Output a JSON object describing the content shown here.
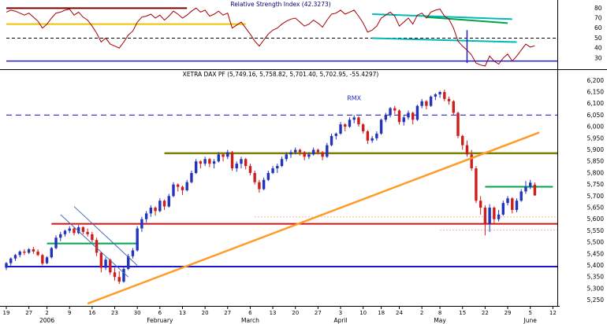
{
  "chart_data": [
    {
      "type": "line",
      "panel": "indicator",
      "title": "Relative Strength Index (42.3273)",
      "current_value": 42.3273,
      "ylim": [
        22,
        85
      ],
      "yticks": [
        80,
        70,
        60,
        50,
        40,
        30
      ],
      "series": [
        {
          "name": "RSI",
          "color": "#a40000",
          "values": [
            76,
            78,
            77,
            75,
            73,
            75,
            71,
            67,
            60,
            64,
            70,
            75,
            76,
            78,
            79,
            73,
            76,
            71,
            68,
            62,
            55,
            46,
            50,
            44,
            42,
            40,
            46,
            53,
            57,
            66,
            71,
            72,
            74,
            70,
            73,
            68,
            72,
            77,
            74,
            70,
            73,
            77,
            80,
            76,
            78,
            72,
            74,
            77,
            73,
            75,
            60,
            63,
            66,
            60,
            54,
            47,
            42,
            48,
            54,
            58,
            60,
            64,
            67,
            69,
            70,
            66,
            62,
            64,
            68,
            65,
            61,
            68,
            74,
            75,
            78,
            74,
            76,
            78,
            72,
            65,
            56,
            58,
            62,
            70,
            73,
            76,
            72,
            62,
            66,
            70,
            64,
            73,
            75,
            70,
            76,
            78,
            79,
            72,
            69,
            60,
            47,
            42,
            38,
            33,
            25,
            23,
            22,
            32,
            27,
            24,
            30,
            34,
            27,
            32,
            38,
            44,
            41,
            42.33
          ]
        }
      ],
      "overlays": [
        {
          "kind": "hline",
          "v": 80,
          "i1": 0,
          "i2": 40,
          "color": "#7d0000",
          "width": 2
        },
        {
          "kind": "hline",
          "v": 64,
          "i1": 0,
          "i2": 53,
          "color": "#edc301",
          "width": 2
        },
        {
          "kind": "hline",
          "v": 50,
          "i1": 0,
          "i2": 122,
          "color": "#000000",
          "width": 1,
          "dash": "4,3"
        },
        {
          "kind": "hline",
          "v": 27,
          "i1": 0,
          "i2": 122,
          "color": "#2121c8",
          "width": 1.5
        },
        {
          "kind": "tline",
          "i1": 81,
          "v1": 74,
          "i2": 112,
          "v2": 69,
          "color": "#00b9b9",
          "width": 2
        },
        {
          "kind": "tline",
          "i1": 93,
          "v1": 71,
          "i2": 111,
          "v2": 65,
          "color": "#00a44c",
          "width": 2
        },
        {
          "kind": "tline",
          "i1": 81,
          "v1": 50,
          "i2": 113,
          "v2": 46,
          "color": "#00b9b9",
          "width": 2
        },
        {
          "kind": "vline",
          "i": 102,
          "v1": 58,
          "v2": 25,
          "color": "#2121c8",
          "width": 1.5
        }
      ]
    },
    {
      "type": "candlestick",
      "panel": "price",
      "title": "XETRA DAX PF (5,749.16, 5,758.82, 5,701.40, 5,702.95, -55.4297)",
      "open": 5749.16,
      "high": 5758.82,
      "low": 5701.4,
      "close": 5702.95,
      "change": -55.4297,
      "up_color": "#2333bb",
      "down_color": "#cf1d1d",
      "ylim": [
        5225,
        6235
      ],
      "yticks": [
        "6,200",
        "6,150",
        "6,100",
        "6,050",
        "6,000",
        "5,950",
        "5,900",
        "5,850",
        "5,800",
        "5,750",
        "5,700",
        "5,650",
        "5,600",
        "5,550",
        "5,500",
        "5,450",
        "5,400",
        "5,350",
        "5,300",
        "5,250"
      ],
      "xticks": [
        {
          "i": 0,
          "label": "19"
        },
        {
          "i": 5,
          "label": "27"
        },
        {
          "i": 9,
          "label": "2"
        },
        {
          "i": 14,
          "label": "9"
        },
        {
          "i": 19,
          "label": "16"
        },
        {
          "i": 24,
          "label": "23"
        },
        {
          "i": 29,
          "label": "30"
        },
        {
          "i": 34,
          "label": "6"
        },
        {
          "i": 39,
          "label": "13"
        },
        {
          "i": 44,
          "label": "20"
        },
        {
          "i": 49,
          "label": "27"
        },
        {
          "i": 54,
          "label": "6"
        },
        {
          "i": 59,
          "label": "13"
        },
        {
          "i": 64,
          "label": "20"
        },
        {
          "i": 69,
          "label": "27"
        },
        {
          "i": 74,
          "label": "3"
        },
        {
          "i": 79,
          "label": "10"
        },
        {
          "i": 83,
          "label": "18"
        },
        {
          "i": 87,
          "label": "24"
        },
        {
          "i": 92,
          "label": "2"
        },
        {
          "i": 96,
          "label": "8"
        },
        {
          "i": 101,
          "label": "15"
        },
        {
          "i": 106,
          "label": "22"
        },
        {
          "i": 111,
          "label": "29"
        },
        {
          "i": 116,
          "label": "5"
        },
        {
          "i": 121,
          "label": "12"
        }
      ],
      "months": [
        {
          "i": 9,
          "label": "2006"
        },
        {
          "i": 34,
          "label": "February"
        },
        {
          "i": 54,
          "label": "March"
        },
        {
          "i": 74,
          "label": "April"
        },
        {
          "i": 96,
          "label": "May"
        },
        {
          "i": 116,
          "label": "June"
        }
      ],
      "annotations": [
        {
          "text": "RMX",
          "i": 77,
          "p": 6115,
          "color": "#2a2ad2"
        }
      ],
      "overlays": [
        {
          "kind": "hline",
          "p": 6050,
          "i1": 0,
          "i2": 122,
          "color": "#3c3cc8",
          "width": 1.3,
          "dash": "7,5"
        },
        {
          "kind": "hline",
          "p": 5885,
          "i1": 35,
          "i2": 122,
          "color": "#7e7e00",
          "width": 2.5
        },
        {
          "kind": "hline",
          "p": 5580,
          "i1": 10,
          "i2": 122,
          "color": "#d01313",
          "width": 2
        },
        {
          "kind": "hline",
          "p": 5610,
          "i1": 55,
          "i2": 122,
          "color": "#f0a0a0",
          "width": 1,
          "dash": "1.5,2.5"
        },
        {
          "kind": "hline",
          "p": 5553,
          "i1": 96,
          "i2": 122,
          "color": "#f0a0a0",
          "width": 1,
          "dash": "1.5,2.5"
        },
        {
          "kind": "hline",
          "p": 5495,
          "i1": 9,
          "i2": 29,
          "color": "#00a44c",
          "width": 2
        },
        {
          "kind": "hline",
          "p": 5740,
          "i1": 106,
          "i2": 121,
          "color": "#00a44c",
          "width": 2
        },
        {
          "kind": "hline",
          "p": 5395,
          "i1": 0,
          "i2": 122,
          "color": "#1717cf",
          "width": 2
        },
        {
          "kind": "tline",
          "i1": 18,
          "p1": 5235,
          "i2": 118,
          "p2": 5975,
          "color": "#ff9b26",
          "width": 2.5
        },
        {
          "kind": "tline",
          "i1": 12,
          "p1": 5620,
          "i2": 27,
          "p2": 5350,
          "color": "#4a6ab4",
          "width": 1
        },
        {
          "kind": "tline",
          "i1": 15,
          "p1": 5655,
          "i2": 29,
          "p2": 5400,
          "color": "#4a6ab4",
          "width": 1
        }
      ],
      "ohlc": [
        [
          5390,
          5415,
          5380,
          5410
        ],
        [
          5410,
          5435,
          5400,
          5430
        ],
        [
          5430,
          5450,
          5420,
          5445
        ],
        [
          5445,
          5465,
          5435,
          5460
        ],
        [
          5460,
          5470,
          5445,
          5455
        ],
        [
          5455,
          5475,
          5450,
          5470
        ],
        [
          5470,
          5480,
          5450,
          5460
        ],
        [
          5460,
          5470,
          5440,
          5445
        ],
        [
          5445,
          5450,
          5400,
          5408
        ],
        [
          5410,
          5440,
          5405,
          5435
        ],
        [
          5435,
          5480,
          5430,
          5475
        ],
        [
          5475,
          5530,
          5470,
          5520
        ],
        [
          5520,
          5545,
          5505,
          5535
        ],
        [
          5535,
          5555,
          5525,
          5550
        ],
        [
          5550,
          5570,
          5540,
          5560
        ],
        [
          5560,
          5565,
          5530,
          5540
        ],
        [
          5540,
          5575,
          5535,
          5565
        ],
        [
          5565,
          5570,
          5535,
          5545
        ],
        [
          5545,
          5560,
          5525,
          5535
        ],
        [
          5535,
          5545,
          5500,
          5510
        ],
        [
          5510,
          5520,
          5440,
          5455
        ],
        [
          5455,
          5460,
          5370,
          5390
        ],
        [
          5390,
          5435,
          5380,
          5425
        ],
        [
          5425,
          5430,
          5360,
          5370
        ],
        [
          5370,
          5390,
          5335,
          5350
        ],
        [
          5350,
          5375,
          5320,
          5330
        ],
        [
          5330,
          5395,
          5325,
          5385
        ],
        [
          5385,
          5450,
          5380,
          5440
        ],
        [
          5440,
          5475,
          5430,
          5465
        ],
        [
          5465,
          5570,
          5460,
          5560
        ],
        [
          5560,
          5610,
          5545,
          5600
        ],
        [
          5600,
          5635,
          5585,
          5625
        ],
        [
          5625,
          5660,
          5610,
          5650
        ],
        [
          5650,
          5655,
          5615,
          5635
        ],
        [
          5635,
          5690,
          5630,
          5680
        ],
        [
          5680,
          5685,
          5640,
          5655
        ],
        [
          5655,
          5710,
          5650,
          5700
        ],
        [
          5700,
          5760,
          5695,
          5750
        ],
        [
          5750,
          5755,
          5720,
          5740
        ],
        [
          5740,
          5745,
          5705,
          5725
        ],
        [
          5725,
          5770,
          5720,
          5760
        ],
        [
          5760,
          5810,
          5755,
          5800
        ],
        [
          5800,
          5860,
          5795,
          5850
        ],
        [
          5850,
          5855,
          5820,
          5840
        ],
        [
          5840,
          5870,
          5830,
          5860
        ],
        [
          5860,
          5865,
          5825,
          5840
        ],
        [
          5840,
          5860,
          5820,
          5850
        ],
        [
          5850,
          5890,
          5845,
          5880
        ],
        [
          5880,
          5885,
          5850,
          5870
        ],
        [
          5870,
          5900,
          5860,
          5890
        ],
        [
          5890,
          5895,
          5810,
          5820
        ],
        [
          5820,
          5850,
          5805,
          5840
        ],
        [
          5840,
          5870,
          5820,
          5860
        ],
        [
          5860,
          5865,
          5815,
          5830
        ],
        [
          5830,
          5840,
          5790,
          5800
        ],
        [
          5800,
          5810,
          5750,
          5760
        ],
        [
          5760,
          5770,
          5715,
          5730
        ],
        [
          5730,
          5780,
          5725,
          5770
        ],
        [
          5770,
          5810,
          5765,
          5800
        ],
        [
          5800,
          5830,
          5795,
          5820
        ],
        [
          5820,
          5840,
          5800,
          5830
        ],
        [
          5830,
          5870,
          5825,
          5860
        ],
        [
          5860,
          5890,
          5850,
          5880
        ],
        [
          5880,
          5900,
          5865,
          5890
        ],
        [
          5890,
          5910,
          5880,
          5900
        ],
        [
          5900,
          5905,
          5875,
          5890
        ],
        [
          5890,
          5895,
          5855,
          5870
        ],
        [
          5870,
          5890,
          5860,
          5880
        ],
        [
          5880,
          5910,
          5875,
          5900
        ],
        [
          5900,
          5905,
          5880,
          5890
        ],
        [
          5890,
          5895,
          5855,
          5870
        ],
        [
          5870,
          5930,
          5865,
          5920
        ],
        [
          5920,
          5970,
          5915,
          5960
        ],
        [
          5960,
          5975,
          5945,
          5970
        ],
        [
          5970,
          6020,
          5965,
          6010
        ],
        [
          6010,
          6015,
          5980,
          6000
        ],
        [
          6000,
          6040,
          5995,
          6030
        ],
        [
          6030,
          6050,
          6015,
          6040
        ],
        [
          6040,
          6045,
          6000,
          6010
        ],
        [
          6010,
          6015,
          5970,
          5980
        ],
        [
          5980,
          5985,
          5925,
          5940
        ],
        [
          5940,
          5960,
          5930,
          5950
        ],
        [
          5950,
          5980,
          5940,
          5970
        ],
        [
          5970,
          6035,
          5965,
          6030
        ],
        [
          6030,
          6060,
          6020,
          6050
        ],
        [
          6050,
          6085,
          6040,
          6080
        ],
        [
          6080,
          6090,
          6055,
          6070
        ],
        [
          6070,
          6075,
          6010,
          6020
        ],
        [
          6020,
          6050,
          6005,
          6040
        ],
        [
          6040,
          6070,
          6030,
          6060
        ],
        [
          6060,
          6065,
          6010,
          6030
        ],
        [
          6030,
          6095,
          6025,
          6090
        ],
        [
          6090,
          6120,
          6080,
          6110
        ],
        [
          6110,
          6115,
          6075,
          6090
        ],
        [
          6090,
          6135,
          6085,
          6130
        ],
        [
          6130,
          6145,
          6115,
          6140
        ],
        [
          6140,
          6155,
          6125,
          6150
        ],
        [
          6150,
          6160,
          6110,
          6120
        ],
        [
          6120,
          6130,
          6095,
          6110
        ],
        [
          6110,
          6115,
          6050,
          6060
        ],
        [
          6060,
          6065,
          5950,
          5960
        ],
        [
          5960,
          5965,
          5900,
          5920
        ],
        [
          5920,
          5940,
          5870,
          5880
        ],
        [
          5880,
          5900,
          5810,
          5820
        ],
        [
          5820,
          5830,
          5670,
          5680
        ],
        [
          5680,
          5700,
          5620,
          5650
        ],
        [
          5650,
          5660,
          5530,
          5580
        ],
        [
          5580,
          5665,
          5545,
          5650
        ],
        [
          5650,
          5655,
          5580,
          5600
        ],
        [
          5600,
          5640,
          5590,
          5620
        ],
        [
          5620,
          5680,
          5615,
          5670
        ],
        [
          5670,
          5700,
          5660,
          5690
        ],
        [
          5690,
          5695,
          5625,
          5640
        ],
        [
          5640,
          5690,
          5630,
          5680
        ],
        [
          5680,
          5730,
          5675,
          5720
        ],
        [
          5720,
          5765,
          5710,
          5740
        ],
        [
          5740,
          5770,
          5730,
          5758
        ],
        [
          5749.16,
          5758.82,
          5701.4,
          5702.95
        ]
      ]
    }
  ]
}
